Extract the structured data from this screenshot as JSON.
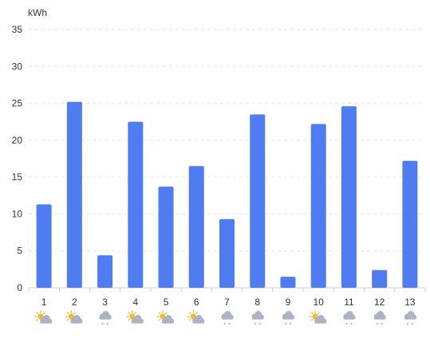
{
  "chart_data": {
    "type": "bar",
    "unit_label": "kWh",
    "categories": [
      "1",
      "2",
      "3",
      "4",
      "5",
      "6",
      "7",
      "8",
      "9",
      "10",
      "11",
      "12",
      "13"
    ],
    "values": [
      11.3,
      25.2,
      4.4,
      22.5,
      13.7,
      16.5,
      9.3,
      23.5,
      1.5,
      22.2,
      24.6,
      2.4,
      17.2
    ],
    "weather": [
      "partly-sunny",
      "partly-sunny",
      "rain",
      "partly-sunny",
      "partly-sunny",
      "partly-sunny",
      "rain",
      "rain",
      "rain",
      "partly-sunny",
      "rain",
      "rain",
      "rain"
    ],
    "ylim": [
      0,
      35
    ],
    "yticks": [
      0,
      5,
      10,
      15,
      20,
      25,
      30,
      35
    ],
    "bar_color": "#4f7cf0",
    "grid": true
  }
}
